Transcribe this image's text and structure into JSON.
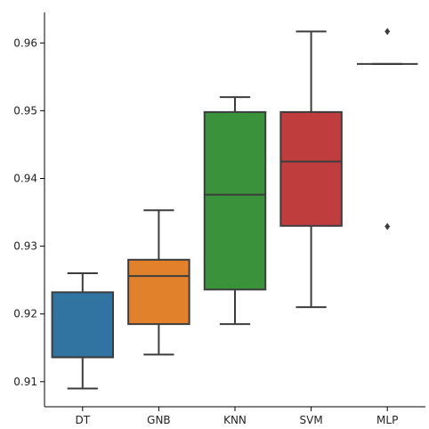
{
  "chart_data": {
    "type": "box",
    "title": "",
    "xlabel": "",
    "ylabel": "",
    "ylim": [
      0.9063,
      0.9645
    ],
    "yticks": [
      0.91,
      0.92,
      0.93,
      0.94,
      0.95,
      0.96
    ],
    "ytick_labels": [
      "0.91",
      "0.92",
      "0.93",
      "0.94",
      "0.95",
      "0.96"
    ],
    "grid": false,
    "categories": [
      "DT",
      "GNB",
      "KNN",
      "SVM",
      "MLP"
    ],
    "colors": [
      "#3274a1",
      "#e1812c",
      "#3a923a",
      "#c03d3e",
      "#9372b2"
    ],
    "boxes": [
      {
        "name": "DT",
        "whisker_low": 0.909,
        "q1": 0.9136,
        "median": 0.9136,
        "q3": 0.9232,
        "whisker_high": 0.926,
        "outliers": []
      },
      {
        "name": "GNB",
        "whisker_low": 0.914,
        "q1": 0.9185,
        "median": 0.9256,
        "q3": 0.928,
        "whisker_high": 0.9353,
        "outliers": []
      },
      {
        "name": "KNN",
        "whisker_low": 0.9185,
        "q1": 0.9236,
        "median": 0.9376,
        "q3": 0.9498,
        "whisker_high": 0.952,
        "outliers": []
      },
      {
        "name": "SVM",
        "whisker_low": 0.921,
        "q1": 0.933,
        "median": 0.9425,
        "q3": 0.9498,
        "whisker_high": 0.9617,
        "outliers": []
      },
      {
        "name": "MLP",
        "whisker_low": 0.9569,
        "q1": 0.9569,
        "median": 0.9569,
        "q3": 0.9569,
        "whisker_high": 0.9569,
        "outliers": [
          0.9617,
          0.9329
        ]
      }
    ]
  }
}
